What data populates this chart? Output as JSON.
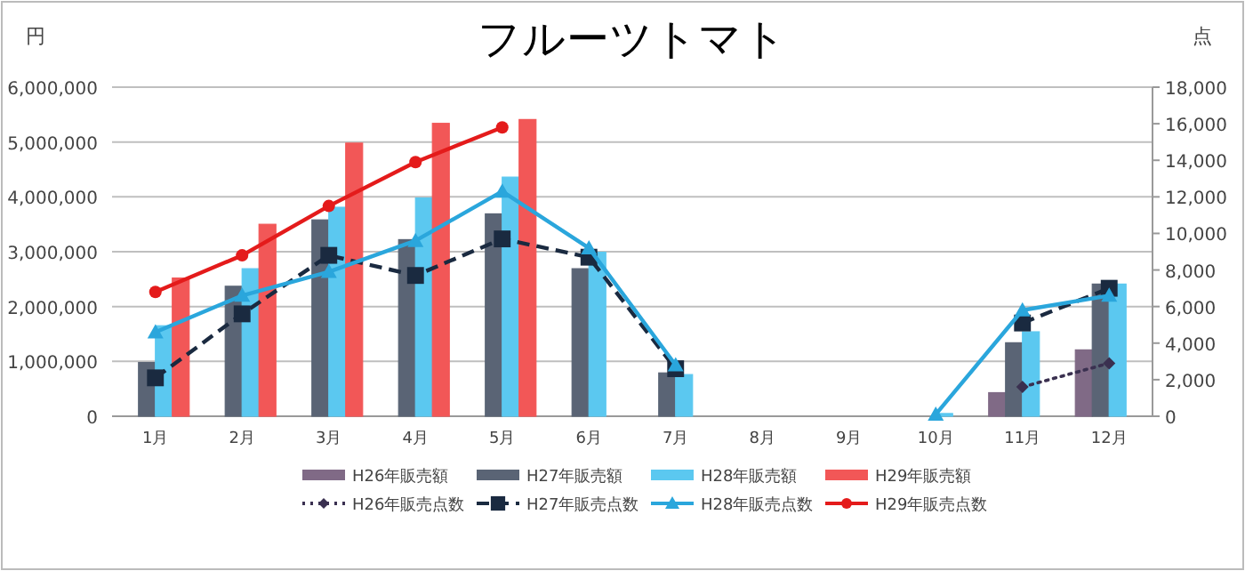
{
  "chart_data": {
    "type": "bar",
    "title": "フルーツトマト",
    "ylabel": "円",
    "y2label": "点",
    "categories": [
      "1月",
      "2月",
      "3月",
      "4月",
      "5月",
      "6月",
      "7月",
      "8月",
      "9月",
      "10月",
      "11月",
      "12月"
    ],
    "series": [
      {
        "name": "H26年販売額",
        "color": "#806a86",
        "values": [
          null,
          null,
          null,
          null,
          null,
          null,
          null,
          null,
          null,
          null,
          430000,
          1210000
        ]
      },
      {
        "name": "H27年販売額",
        "color": "#5a6475",
        "values": [
          980000,
          2370000,
          3580000,
          3220000,
          3690000,
          2690000,
          790000,
          null,
          null,
          null,
          1340000,
          2410000
        ]
      },
      {
        "name": "H28年販売額",
        "color": "#5bc8f0",
        "values": [
          1650000,
          2690000,
          3810000,
          3980000,
          4360000,
          2990000,
          760000,
          null,
          null,
          50000,
          1540000,
          2410000
        ]
      },
      {
        "name": "H29年販売額",
        "color": "#f25757",
        "values": [
          2520000,
          3500000,
          4980000,
          5340000,
          5410000,
          null,
          null,
          null,
          null,
          null,
          null,
          null
        ]
      },
      {
        "name": "H26年販売点数",
        "type": "line",
        "axis": "y2",
        "color": "#3a3050",
        "marker": "diamond",
        "line_style": "dotted",
        "values": [
          null,
          null,
          null,
          null,
          null,
          null,
          null,
          null,
          null,
          null,
          1600,
          2900
        ]
      },
      {
        "name": "H27年販売点数",
        "type": "line",
        "axis": "y2",
        "color": "#1a2a40",
        "marker": "square",
        "line_style": "dashed",
        "values": [
          2100,
          5600,
          8800,
          7700,
          9700,
          8700,
          2600,
          null,
          null,
          null,
          5100,
          7000
        ]
      },
      {
        "name": "H28年販売点数",
        "type": "line",
        "axis": "y2",
        "color": "#2aa6dc",
        "marker": "triangle",
        "line_style": "solid",
        "values": [
          4600,
          6600,
          7900,
          9600,
          12300,
          9200,
          2800,
          null,
          null,
          100,
          5800,
          6600
        ]
      },
      {
        "name": "H29年販売点数",
        "type": "line",
        "axis": "y2",
        "color": "#e41b1b",
        "marker": "circle",
        "line_style": "solid",
        "values": [
          6800,
          8800,
          11500,
          13900,
          15800,
          null,
          null,
          null,
          null,
          null,
          null,
          null
        ]
      }
    ],
    "ylim": [
      0,
      6000000
    ],
    "yticks": [
      0,
      {
        "value": 1000000,
        "label": "1,000,000"
      },
      {
        "value": 2000000,
        "label": "2,000,000"
      },
      {
        "value": 3000000,
        "label": "3,000,000"
      },
      {
        "value": 4000000,
        "label": "4,000,000"
      },
      {
        "value": 5000000,
        "label": "5,000,000"
      },
      {
        "value": 6000000,
        "label": "6,000,000"
      }
    ],
    "y2lim": [
      0,
      18000
    ],
    "y2ticks": [
      0,
      {
        "value": 2000,
        "label": "2,000"
      },
      {
        "value": 4000,
        "label": "4,000"
      },
      {
        "value": 6000,
        "label": "6,000"
      },
      {
        "value": 8000,
        "label": "8,000"
      },
      {
        "value": 10000,
        "label": "10,000"
      },
      {
        "value": 12000,
        "label": "12,000"
      },
      {
        "value": 14000,
        "label": "14,000"
      },
      {
        "value": 16000,
        "label": "16,000"
      },
      {
        "value": 18000,
        "label": "18,000"
      }
    ],
    "grid": "y",
    "legend": "bottom"
  }
}
